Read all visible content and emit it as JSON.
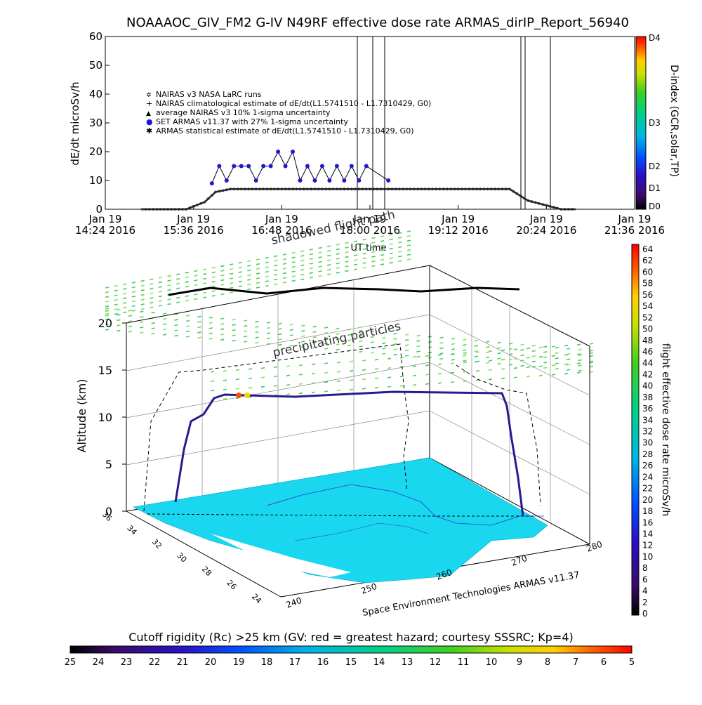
{
  "title": "NOAAAOC_GIV_FM2 G-IV    N49RF   effective dose rate ARMAS_dirIP_Report_56940",
  "chart_data": [
    {
      "type": "line",
      "ylabel": "dE/dt microSv/h",
      "xlabel": "UT time",
      "ylim": [
        0,
        60
      ],
      "yticks": [
        "0",
        "10",
        "20",
        "30",
        "40",
        "50",
        "60"
      ],
      "xticks": [
        {
          "date": "Jan 19",
          "time": "14:24 2016"
        },
        {
          "date": "Jan 19",
          "time": "15:36 2016"
        },
        {
          "date": "Jan 19",
          "time": "16:48 2016"
        },
        {
          "date": "Jan 19",
          "time": "18:00 2016"
        },
        {
          "date": "Jan 19",
          "time": "19:12 2016"
        },
        {
          "date": "Jan 19",
          "time": "20:24 2016"
        },
        {
          "date": "Jan 19",
          "time": "21:36 2016"
        }
      ],
      "x_hours": [
        14.4,
        15.6,
        16.8,
        18.0,
        19.2,
        20.4,
        21.6
      ],
      "right_axis_label": "D-index (GCR,solar,TP)",
      "right_axis_ticks": [
        "D4",
        "D3",
        "D2",
        "D1",
        "D0"
      ],
      "legend": [
        {
          "marker": "✲",
          "label": "NAIRAS v3 NASA LaRC runs"
        },
        {
          "marker": "+",
          "label": "NAIRAS climatological estimate of dE/dt(L1.5741510 - L1.7310429, G0)"
        },
        {
          "marker": "▲",
          "label": "average NAIRAS v3 10% 1-sigma uncertainty"
        },
        {
          "marker": "●",
          "label": "SET ARMAS v11.37 with 27% 1-sigma uncertainty"
        },
        {
          "marker": "✱",
          "label": "ARMAS statistical estimate of dE/dt(L1.5741510 - L1.7310429, G0)"
        }
      ],
      "series": [
        {
          "name": "SET ARMAS v11.37 with 27% 1-sigma uncertainty",
          "x": [
            15.85,
            15.95,
            16.05,
            16.15,
            16.25,
            16.35,
            16.45,
            16.55,
            16.65,
            16.75,
            16.85,
            16.95,
            17.05,
            17.15,
            17.25,
            17.35,
            17.45,
            17.55,
            17.65,
            17.75,
            17.85,
            17.95,
            18.25
          ],
          "y": [
            9,
            15,
            10,
            15,
            15,
            15,
            10,
            15,
            15,
            20,
            15,
            20,
            10,
            15,
            10,
            15,
            10,
            15,
            10,
            15,
            10,
            15,
            10
          ]
        },
        {
          "name": "NAIRAS v3 NASA LaRC runs",
          "x": [
            14.9,
            15.5,
            15.75,
            15.9,
            16.1,
            17.0,
            18.0,
            19.0,
            19.5,
            19.9,
            20.15,
            20.6,
            20.8
          ],
          "y": [
            0,
            0,
            2.5,
            6,
            7,
            7,
            7,
            7,
            7,
            7,
            3,
            0,
            0
          ]
        }
      ]
    },
    {
      "type": "scatter",
      "zlabel": "Altitude (km)",
      "zticks": [
        "0",
        "5",
        "10",
        "15",
        "20"
      ],
      "lat_ticks": [
        "36",
        "34",
        "32",
        "30",
        "28",
        "26",
        "24"
      ],
      "lon_ticks": [
        "240",
        "250",
        "260",
        "270",
        "280"
      ],
      "colorbar_label": "flight effective dose rate microSv/h",
      "colorbar_ticks": [
        "64",
        "62",
        "60",
        "58",
        "56",
        "54",
        "52",
        "50",
        "48",
        "46",
        "44",
        "42",
        "40",
        "38",
        "36",
        "34",
        "32",
        "30",
        "28",
        "26",
        "24",
        "22",
        "20",
        "18",
        "16",
        "14",
        "12",
        "10",
        "8",
        "6",
        "4",
        "2",
        "0"
      ],
      "annotations": [
        "shadowed flight path",
        "precipitating particles"
      ],
      "credit": "Space Environment Technologies ARMAS v11.37"
    },
    {
      "type": "heatmap",
      "title": "Cutoff rigidity (Rc) >25 km (GV: red = greatest hazard; courtesy SSSRC; Kp=4)",
      "ticks": [
        "25",
        "24",
        "23",
        "22",
        "21",
        "20",
        "19",
        "18",
        "17",
        "16",
        "15",
        "14",
        "13",
        "12",
        "11",
        "10",
        "9",
        "8",
        "7",
        "6",
        "5"
      ]
    }
  ]
}
